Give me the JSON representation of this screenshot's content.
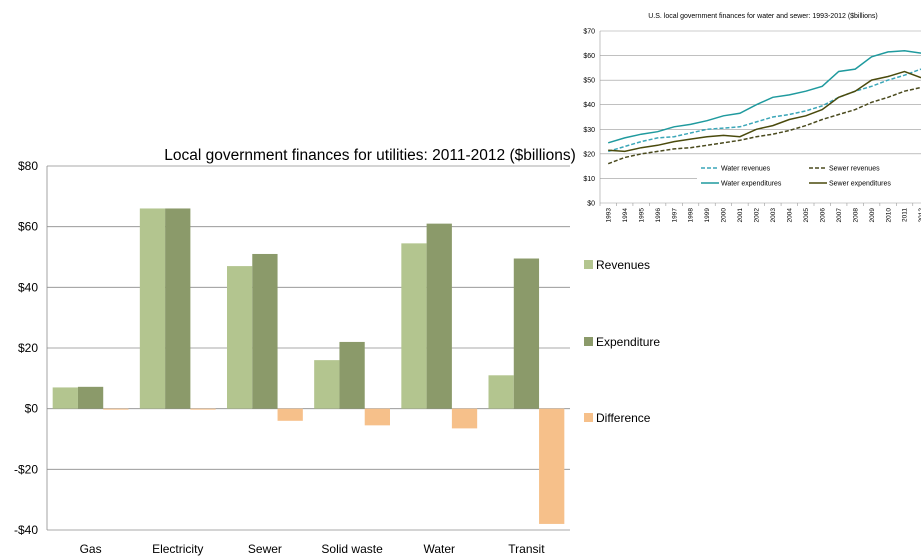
{
  "chart_data": [
    {
      "type": "bar",
      "title": "Local government finances for utilities: 2011-2012 ($billions)",
      "categories": [
        "Gas",
        "Electricity",
        "Sewer",
        "Solid waste",
        "Water",
        "Transit"
      ],
      "series": [
        {
          "name": "Revenues",
          "color": "#b3c58f",
          "values": [
            7,
            66,
            47,
            16,
            54.5,
            11
          ]
        },
        {
          "name": "Expenditure",
          "color": "#8b9a6a",
          "values": [
            7.2,
            66,
            51,
            22,
            61,
            49.5
          ]
        },
        {
          "name": "Difference",
          "color": "#f6c08a",
          "values": [
            -0.2,
            -0.2,
            -4,
            -5.5,
            -6.5,
            -38
          ]
        }
      ],
      "ylim": [
        -40,
        80
      ],
      "yticks": [
        -40,
        -20,
        0,
        20,
        40,
        60,
        80
      ],
      "ytick_labels": [
        "-$40",
        "-$20",
        "$0",
        "$20",
        "$40",
        "$60",
        "$80"
      ],
      "grid": true,
      "legend_position": "right"
    },
    {
      "type": "line",
      "title": "U.S. local government finances for water and sewer: 1993-2012 ($billions)",
      "x": [
        "1993",
        "1994",
        "1995",
        "1996",
        "1997",
        "1998",
        "1999",
        "2000",
        "2001",
        "2002",
        "2003",
        "2004",
        "2005",
        "2006",
        "2007",
        "2008",
        "2009",
        "2010",
        "2011",
        "2012"
      ],
      "series": [
        {
          "name": "Water revenues",
          "color": "#3aa6b8",
          "dash": "dashed",
          "values": [
            21,
            23,
            25,
            26.5,
            27,
            28.5,
            30,
            30.5,
            31,
            33,
            35,
            36,
            37.5,
            39.5,
            43,
            45.5,
            47.5,
            50,
            52,
            54.5
          ]
        },
        {
          "name": "Sewer revenues",
          "color": "#4a4a1e",
          "dash": "dashed",
          "values": [
            16,
            18.5,
            20,
            21,
            22,
            22.5,
            23.5,
            24.5,
            25.5,
            27,
            28,
            29.5,
            31.5,
            34,
            36,
            38,
            41,
            43,
            45.5,
            47
          ]
        },
        {
          "name": "Water expenditures",
          "color": "#1f9a9e",
          "dash": "solid",
          "values": [
            24.5,
            26.5,
            28,
            29,
            31,
            32,
            33.5,
            35.5,
            36.5,
            40,
            43,
            44,
            45.5,
            47.5,
            53.5,
            54.5,
            59.5,
            61.5,
            62,
            61
          ]
        },
        {
          "name": "Sewer expenditures",
          "color": "#4a4a0c",
          "dash": "solid",
          "values": [
            21.5,
            21,
            22.5,
            23.5,
            25,
            26,
            27,
            27.5,
            27,
            30,
            31.5,
            34,
            35.5,
            38,
            43,
            45.5,
            50,
            51.5,
            53.5,
            51
          ]
        }
      ],
      "ylim": [
        0,
        70
      ],
      "yticks": [
        0,
        10,
        20,
        30,
        40,
        50,
        60,
        70
      ],
      "ytick_labels": [
        "$0",
        "$10",
        "$20",
        "$30",
        "$40",
        "$50",
        "$60",
        "$70"
      ],
      "grid": true,
      "legend_position": "bottom-right"
    }
  ]
}
